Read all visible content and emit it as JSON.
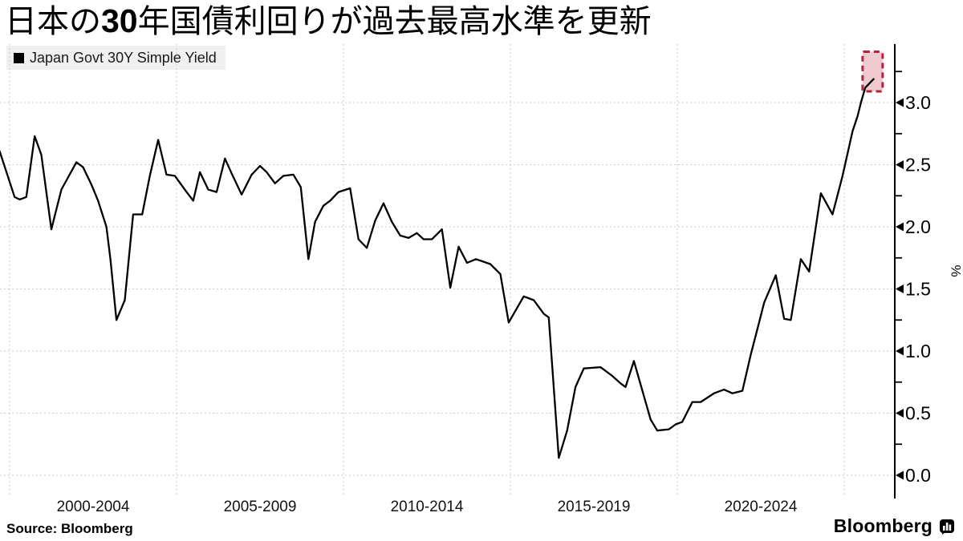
{
  "title": {
    "pre": "日本の",
    "num": "30",
    "post": "年国債利回りが過去最高水準を更新"
  },
  "legend": {
    "label": "Japan Govt 30Y Simple Yield",
    "swatch_color": "#000000"
  },
  "source": {
    "label": "Source: Bloomberg"
  },
  "branding": {
    "wordmark": "Bloomberg",
    "icon": "bloomberg-terminal-icon"
  },
  "chart_data": {
    "type": "line",
    "title": "日本の30年国債利回りが過去最高水準を更新",
    "legend_entries": [
      "Japan Govt 30Y Simple Yield"
    ],
    "unit_label": "%",
    "line_color": "#000000",
    "grid_color": "#c9c9c9",
    "highlight_stroke": "#b5233c",
    "highlight_fill": "rgba(196,38,72,0.25)",
    "ylim": [
      0.0,
      3.45
    ],
    "xlim_years": [
      1999.7,
      2026.5
    ],
    "grid": true,
    "legend_position": "top-left",
    "y_axis_side": "right",
    "y_ticks": [
      0.0,
      0.5,
      1.0,
      1.5,
      2.0,
      2.5,
      3.0
    ],
    "y_tick_labels": [
      "0.0",
      "0.5",
      "1.0",
      "1.5",
      "2.0",
      "2.5",
      "3.0"
    ],
    "y_minor_ticks": [
      0.25,
      0.75,
      1.25,
      1.75,
      2.25,
      2.75,
      3.25
    ],
    "x_gridline_years": [
      2000,
      2005,
      2010,
      2015,
      2020,
      2025
    ],
    "x_labels": [
      {
        "label": "2000-2004",
        "center_year": 2002.5
      },
      {
        "label": "2005-2009",
        "center_year": 2007.5
      },
      {
        "label": "2010-2014",
        "center_year": 2012.5
      },
      {
        "label": "2015-2019",
        "center_year": 2017.5
      },
      {
        "label": "2020-2024",
        "center_year": 2022.5
      }
    ],
    "highlight_box": {
      "year_start": 2025.55,
      "year_end": 2026.15,
      "value_low": 3.09,
      "value_high": 3.41
    },
    "series": [
      {
        "name": "Japan Govt 30Y Simple Yield",
        "points": [
          [
            1999.7,
            2.61
          ],
          [
            2000.15,
            2.24
          ],
          [
            2000.3,
            2.22
          ],
          [
            2000.5,
            2.24
          ],
          [
            2000.75,
            2.73
          ],
          [
            2000.95,
            2.58
          ],
          [
            2001.25,
            1.98
          ],
          [
            2001.55,
            2.3
          ],
          [
            2002.0,
            2.52
          ],
          [
            2002.2,
            2.48
          ],
          [
            2002.45,
            2.34
          ],
          [
            2002.65,
            2.21
          ],
          [
            2002.9,
            2.0
          ],
          [
            2003.02,
            1.74
          ],
          [
            2003.2,
            1.25
          ],
          [
            2003.45,
            1.41
          ],
          [
            2003.7,
            2.1
          ],
          [
            2003.97,
            2.1
          ],
          [
            2004.2,
            2.41
          ],
          [
            2004.45,
            2.7
          ],
          [
            2004.7,
            2.42
          ],
          [
            2004.95,
            2.41
          ],
          [
            2005.3,
            2.28
          ],
          [
            2005.5,
            2.21
          ],
          [
            2005.7,
            2.44
          ],
          [
            2005.95,
            2.3
          ],
          [
            2006.2,
            2.28
          ],
          [
            2006.45,
            2.55
          ],
          [
            2006.65,
            2.43
          ],
          [
            2006.95,
            2.26
          ],
          [
            2007.25,
            2.42
          ],
          [
            2007.5,
            2.49
          ],
          [
            2007.7,
            2.44
          ],
          [
            2007.95,
            2.35
          ],
          [
            2008.2,
            2.41
          ],
          [
            2008.5,
            2.42
          ],
          [
            2008.72,
            2.32
          ],
          [
            2008.95,
            1.74
          ],
          [
            2009.15,
            2.04
          ],
          [
            2009.4,
            2.17
          ],
          [
            2009.6,
            2.21
          ],
          [
            2009.85,
            2.28
          ],
          [
            2010.2,
            2.31
          ],
          [
            2010.45,
            1.9
          ],
          [
            2010.7,
            1.83
          ],
          [
            2010.95,
            2.05
          ],
          [
            2011.2,
            2.19
          ],
          [
            2011.45,
            2.04
          ],
          [
            2011.7,
            1.93
          ],
          [
            2011.95,
            1.91
          ],
          [
            2012.2,
            1.95
          ],
          [
            2012.4,
            1.9
          ],
          [
            2012.65,
            1.9
          ],
          [
            2012.95,
            1.98
          ],
          [
            2013.2,
            1.51
          ],
          [
            2013.45,
            1.84
          ],
          [
            2013.7,
            1.71
          ],
          [
            2013.97,
            1.74
          ],
          [
            2014.4,
            1.7
          ],
          [
            2014.7,
            1.62
          ],
          [
            2014.95,
            1.23
          ],
          [
            2015.4,
            1.44
          ],
          [
            2015.7,
            1.41
          ],
          [
            2016.0,
            1.3
          ],
          [
            2016.15,
            1.27
          ],
          [
            2016.45,
            0.14
          ],
          [
            2016.7,
            0.36
          ],
          [
            2016.95,
            0.71
          ],
          [
            2017.2,
            0.86
          ],
          [
            2017.7,
            0.87
          ],
          [
            2018.05,
            0.8
          ],
          [
            2018.3,
            0.74
          ],
          [
            2018.45,
            0.71
          ],
          [
            2018.7,
            0.92
          ],
          [
            2019.2,
            0.45
          ],
          [
            2019.4,
            0.36
          ],
          [
            2019.75,
            0.37
          ],
          [
            2019.95,
            0.41
          ],
          [
            2020.15,
            0.43
          ],
          [
            2020.45,
            0.59
          ],
          [
            2020.7,
            0.59
          ],
          [
            2021.1,
            0.66
          ],
          [
            2021.4,
            0.69
          ],
          [
            2021.65,
            0.66
          ],
          [
            2021.95,
            0.68
          ],
          [
            2022.2,
            0.97
          ],
          [
            2022.45,
            1.23
          ],
          [
            2022.6,
            1.39
          ],
          [
            2022.95,
            1.61
          ],
          [
            2023.2,
            1.26
          ],
          [
            2023.4,
            1.25
          ],
          [
            2023.7,
            1.74
          ],
          [
            2023.95,
            1.64
          ],
          [
            2024.3,
            2.27
          ],
          [
            2024.65,
            2.1
          ],
          [
            2024.95,
            2.41
          ],
          [
            2025.25,
            2.77
          ],
          [
            2025.4,
            2.89
          ],
          [
            2025.5,
            3.0
          ],
          [
            2025.63,
            3.12
          ],
          [
            2025.88,
            3.19
          ]
        ]
      }
    ]
  }
}
